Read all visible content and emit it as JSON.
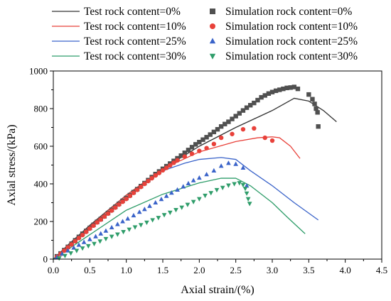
{
  "chart_data": {
    "type": "scatter",
    "xlabel": "Axial strain/(%)",
    "ylabel": "Axial stress/(kPa)",
    "xlim": [
      0,
      4.5
    ],
    "ylim": [
      0,
      1000
    ],
    "xticks": [
      "0.0",
      "0.5",
      "1.0",
      "1.5",
      "2.0",
      "2.5",
      "3.0",
      "3.5",
      "4.0",
      "4.5"
    ],
    "yticks": [
      "0",
      "200",
      "400",
      "600",
      "800",
      "1000"
    ],
    "grid": false,
    "legend_position": "top",
    "series": [
      {
        "name": "Test rock content=0%",
        "kind": "line",
        "color": "#333333",
        "x": [
          0,
          0.2,
          0.5,
          1.0,
          1.5,
          2.0,
          2.5,
          3.0,
          3.3,
          3.5,
          3.7,
          3.88
        ],
        "y": [
          0,
          75,
          180,
          340,
          480,
          600,
          700,
          790,
          855,
          840,
          790,
          730
        ]
      },
      {
        "name": "Test rock content=10%",
        "kind": "line",
        "color": "#e8413a",
        "x": [
          0,
          0.2,
          0.5,
          1.0,
          1.5,
          2.0,
          2.5,
          2.8,
          3.0,
          3.1,
          3.25,
          3.38
        ],
        "y": [
          0,
          70,
          175,
          340,
          480,
          570,
          625,
          645,
          650,
          645,
          600,
          535
        ]
      },
      {
        "name": "Test rock content=25%",
        "kind": "line",
        "color": "#3a63c9",
        "x": [
          0,
          0.5,
          1.0,
          1.5,
          1.8,
          2.0,
          2.3,
          2.5,
          2.7,
          3.0,
          3.3,
          3.63
        ],
        "y": [
          0,
          160,
          330,
          470,
          510,
          530,
          540,
          530,
          470,
          390,
          300,
          208
        ]
      },
      {
        "name": "Test rock content=30%",
        "kind": "line",
        "color": "#2f9d6a",
        "x": [
          0,
          0.5,
          1.0,
          1.5,
          2.0,
          2.3,
          2.5,
          2.7,
          3.0,
          3.2,
          3.45
        ],
        "y": [
          0,
          130,
          260,
          345,
          405,
          430,
          430,
          390,
          300,
          225,
          135
        ]
      },
      {
        "name": "Simulation rock content=0%",
        "kind": "scatter",
        "marker": "square",
        "color": "#505050",
        "x": [
          0.05,
          0.1,
          0.15,
          0.2,
          0.25,
          0.3,
          0.35,
          0.4,
          0.45,
          0.5,
          0.55,
          0.6,
          0.65,
          0.7,
          0.75,
          0.8,
          0.85,
          0.9,
          0.95,
          1.0,
          1.05,
          1.1,
          1.15,
          1.2,
          1.25,
          1.3,
          1.35,
          1.4,
          1.45,
          1.5,
          1.55,
          1.6,
          1.65,
          1.7,
          1.75,
          1.8,
          1.85,
          1.9,
          1.95,
          2.0,
          2.05,
          2.1,
          2.15,
          2.2,
          2.25,
          2.3,
          2.35,
          2.4,
          2.45,
          2.5,
          2.55,
          2.6,
          2.65,
          2.7,
          2.75,
          2.8,
          2.85,
          2.9,
          2.95,
          3.0,
          3.05,
          3.1,
          3.15,
          3.2,
          3.25,
          3.3,
          3.35,
          3.5,
          3.55,
          3.58,
          3.6,
          3.62,
          3.63
        ],
        "y": [
          15,
          30,
          48,
          65,
          82,
          100,
          118,
          135,
          150,
          166,
          182,
          198,
          213,
          228,
          245,
          262,
          278,
          294,
          310,
          325,
          340,
          356,
          372,
          388,
          404,
          420,
          436,
          452,
          466,
          480,
          494,
          508,
          522,
          536,
          550,
          565,
          580,
          595,
          610,
          622,
          635,
          648,
          662,
          676,
          690,
          705,
          718,
          730,
          745,
          760,
          775,
          790,
          805,
          818,
          830,
          845,
          860,
          870,
          880,
          888,
          895,
          900,
          905,
          910,
          912,
          915,
          905,
          875,
          850,
          825,
          800,
          780,
          705
        ]
      },
      {
        "name": "Simulation rock content=10%",
        "kind": "scatter",
        "marker": "circle",
        "color": "#e8413a",
        "x": [
          0.05,
          0.1,
          0.15,
          0.2,
          0.25,
          0.3,
          0.35,
          0.4,
          0.45,
          0.5,
          0.55,
          0.6,
          0.65,
          0.7,
          0.75,
          0.8,
          0.85,
          0.9,
          0.95,
          1.0,
          1.05,
          1.1,
          1.15,
          1.2,
          1.25,
          1.3,
          1.35,
          1.4,
          1.45,
          1.5,
          1.55,
          1.6,
          1.65,
          1.7,
          1.8,
          1.9,
          2.0,
          2.1,
          2.2,
          2.3,
          2.45,
          2.6,
          2.75,
          2.9,
          3.0
        ],
        "y": [
          12,
          28,
          45,
          62,
          78,
          95,
          112,
          128,
          145,
          162,
          178,
          195,
          210,
          226,
          242,
          258,
          274,
          290,
          305,
          320,
          336,
          352,
          368,
          384,
          400,
          415,
          430,
          445,
          458,
          472,
          485,
          498,
          512,
          525,
          545,
          560,
          575,
          590,
          612,
          645,
          665,
          690,
          695,
          645,
          630
        ]
      },
      {
        "name": "Simulation rock content=25%",
        "kind": "scatter",
        "marker": "triangle-up",
        "color": "#3a63c9",
        "x": [
          0.05,
          0.12,
          0.2,
          0.28,
          0.35,
          0.42,
          0.5,
          0.58,
          0.65,
          0.72,
          0.8,
          0.88,
          0.95,
          1.02,
          1.1,
          1.18,
          1.25,
          1.32,
          1.4,
          1.48,
          1.55,
          1.62,
          1.7,
          1.78,
          1.85,
          1.92,
          2.0,
          2.1,
          2.2,
          2.3,
          2.4,
          2.5,
          2.6,
          2.65
        ],
        "y": [
          10,
          28,
          45,
          60,
          75,
          90,
          105,
          120,
          135,
          150,
          168,
          185,
          200,
          215,
          232,
          250,
          265,
          282,
          300,
          318,
          335,
          352,
          368,
          385,
          402,
          418,
          432,
          450,
          470,
          495,
          510,
          505,
          485,
          390
        ]
      },
      {
        "name": "Simulation rock content=30%",
        "kind": "scatter",
        "marker": "triangle-down",
        "color": "#2f9d6a",
        "x": [
          0.08,
          0.16,
          0.24,
          0.32,
          0.4,
          0.48,
          0.56,
          0.64,
          0.72,
          0.8,
          0.88,
          0.96,
          1.04,
          1.12,
          1.2,
          1.28,
          1.36,
          1.44,
          1.52,
          1.6,
          1.68,
          1.76,
          1.84,
          1.92,
          2.0,
          2.08,
          2.16,
          2.24,
          2.32,
          2.4,
          2.48,
          2.55,
          2.6,
          2.63,
          2.65,
          2.67,
          2.69
        ],
        "y": [
          5,
          18,
          32,
          45,
          58,
          70,
          82,
          95,
          108,
          120,
          132,
          145,
          158,
          170,
          182,
          195,
          208,
          220,
          235,
          248,
          262,
          275,
          290,
          305,
          320,
          338,
          352,
          368,
          380,
          392,
          400,
          405,
          395,
          375,
          350,
          320,
          295
        ]
      }
    ]
  }
}
